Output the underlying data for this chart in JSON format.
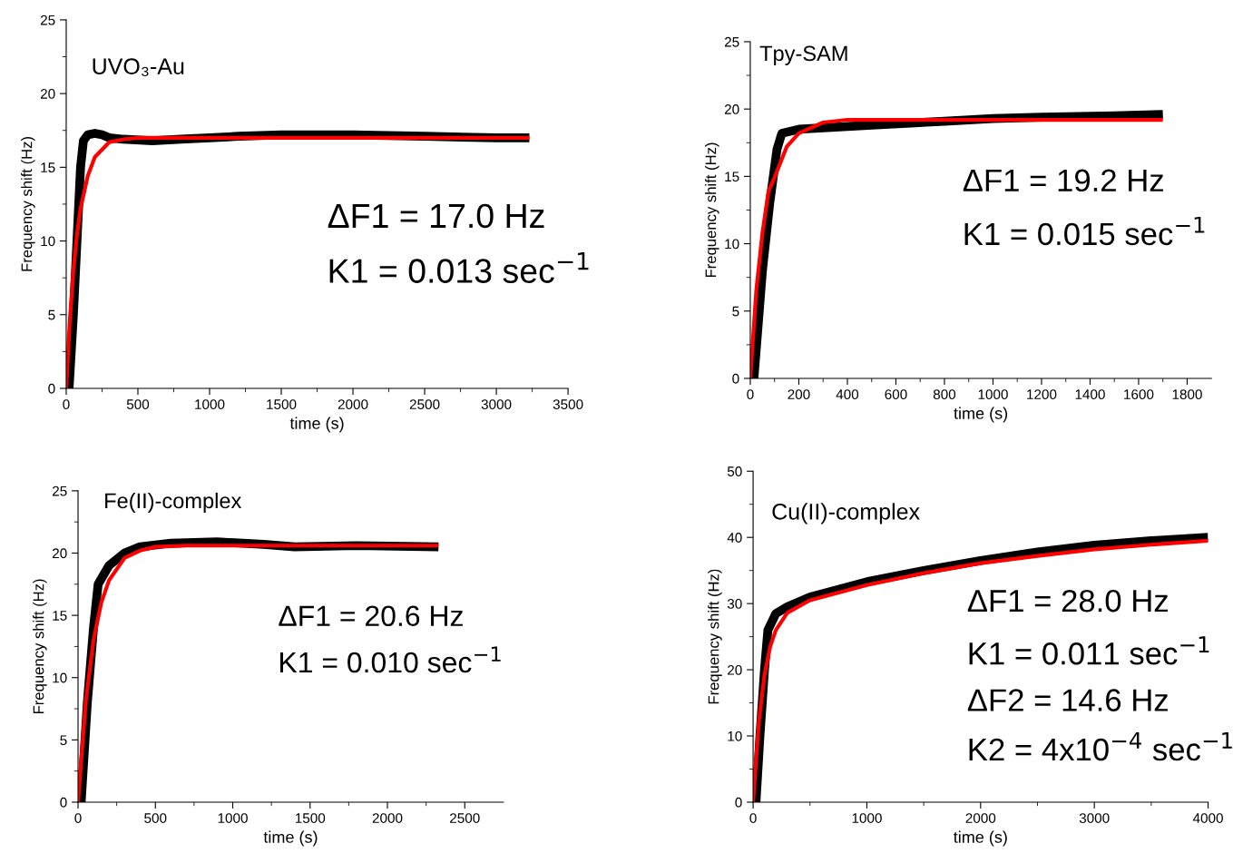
{
  "chart_data": [
    {
      "type": "line",
      "title": "UVO₃-Au",
      "xlabel": "time (s)",
      "ylabel": "Frequency shift (Hz)",
      "xlim": [
        0,
        3500
      ],
      "ylim": [
        0,
        25
      ],
      "xticks": [
        0,
        {
          "value": 250,
          "label": null
        },
        500,
        {
          "value": 750,
          "label": null
        },
        1000,
        {
          "value": 1250,
          "label": null
        },
        1500,
        {
          "value": 1750,
          "label": null
        },
        2000,
        {
          "value": 2250,
          "label": null
        },
        2500,
        {
          "value": 2750,
          "label": null
        },
        3000,
        {
          "value": 3250,
          "label": null
        },
        3500
      ],
      "yticks": [
        0,
        {
          "value": 2.5,
          "label": null
        },
        5,
        {
          "value": 7.5,
          "label": null
        },
        10,
        {
          "value": 12.5,
          "label": null
        },
        15,
        {
          "value": 17.5,
          "label": null
        },
        20,
        {
          "value": 22.5,
          "label": null
        },
        25
      ],
      "grid": false,
      "legend": false,
      "marker": "none",
      "line_style": "solid",
      "annotations": [
        "ΔF1 = 17.0 Hz",
        "K1 = 0.013 sec$^{−1}$"
      ],
      "series": [
        {
          "color": "#000000",
          "x": [
            0,
            20,
            50,
            80,
            100,
            120,
            150,
            200,
            250,
            300,
            400,
            600,
            800,
            1000,
            1200,
            1500,
            1800,
            2000,
            2500,
            3000,
            3230
          ],
          "values": [
            0,
            0,
            5,
            11,
            15,
            16.8,
            17.2,
            17.3,
            17.2,
            17.0,
            16.9,
            16.8,
            16.9,
            17.0,
            17.1,
            17.2,
            17.2,
            17.2,
            17.1,
            17.0,
            17.0
          ]
        },
        {
          "color": "#ff0000",
          "x": [
            0,
            25,
            50,
            75,
            100,
            150,
            200,
            300,
            400,
            500,
            1000,
            3230
          ],
          "values": [
            0,
            4.6,
            8.0,
            10.4,
            12.2,
            14.4,
            15.7,
            16.7,
            16.9,
            17.0,
            17.0,
            17.0
          ]
        }
      ]
    },
    {
      "type": "line",
      "title": "Tpy-SAM",
      "xlabel": "time (s)",
      "ylabel": "Frequency shift (Hz)",
      "xlim": [
        0,
        1900
      ],
      "ylim": [
        0,
        25
      ],
      "xticks": [
        0,
        {
          "value": 100,
          "label": null
        },
        200,
        {
          "value": 300,
          "label": null
        },
        400,
        {
          "value": 500,
          "label": null
        },
        600,
        {
          "value": 700,
          "label": null
        },
        800,
        {
          "value": 900,
          "label": null
        },
        1000,
        {
          "value": 1100,
          "label": null
        },
        1200,
        {
          "value": 1300,
          "label": null
        },
        1400,
        {
          "value": 1500,
          "label": null
        },
        1600,
        {
          "value": 1700,
          "label": null
        },
        1800
      ],
      "yticks": [
        0,
        {
          "value": 2.5,
          "label": null
        },
        5,
        {
          "value": 7.5,
          "label": null
        },
        10,
        {
          "value": 12.5,
          "label": null
        },
        15,
        {
          "value": 17.5,
          "label": null
        },
        20,
        {
          "value": 22.5,
          "label": null
        },
        25
      ],
      "grid": false,
      "legend": false,
      "marker": "none",
      "line_style": "solid",
      "annotations": [
        "ΔF1 = 19.2 Hz",
        "K1 = 0.015 sec$^{−1}$"
      ],
      "series": [
        {
          "color": "#000000",
          "x": [
            0,
            15,
            50,
            80,
            110,
            130,
            200,
            300,
            500,
            800,
            1000,
            1200,
            1500,
            1700
          ],
          "values": [
            0,
            0,
            8,
            13,
            17,
            18.2,
            18.5,
            18.6,
            18.8,
            19.1,
            19.3,
            19.4,
            19.5,
            19.6
          ]
        },
        {
          "color": "#ff0000",
          "x": [
            0,
            25,
            50,
            75,
            100,
            150,
            200,
            300,
            400,
            1700
          ],
          "values": [
            0,
            6.6,
            10.8,
            13.9,
            14.9,
            17.2,
            18.2,
            19.0,
            19.2,
            19.2
          ]
        }
      ]
    },
    {
      "type": "line",
      "title": "Fe(II)-complex",
      "xlabel": "time (s)",
      "ylabel": "Frequency shift (Hz)",
      "xlim": [
        0,
        2750
      ],
      "ylim": [
        0,
        25
      ],
      "xticks": [
        0,
        {
          "value": 250,
          "label": null
        },
        500,
        {
          "value": 750,
          "label": null
        },
        1000,
        {
          "value": 1250,
          "label": null
        },
        1500,
        {
          "value": 1750,
          "label": null
        },
        2000,
        {
          "value": 2250,
          "label": null
        },
        2500
      ],
      "yticks": [
        0,
        {
          "value": 2.5,
          "label": null
        },
        5,
        {
          "value": 7.5,
          "label": null
        },
        10,
        {
          "value": 12.5,
          "label": null
        },
        15,
        {
          "value": 17.5,
          "label": null
        },
        20,
        {
          "value": 22.5,
          "label": null
        },
        25
      ],
      "grid": false,
      "legend": false,
      "marker": "none",
      "line_style": "solid",
      "annotations": [
        "ΔF1 = 20.6 Hz",
        "K1 = 0.010 sec$^{−1}$"
      ],
      "series": [
        {
          "color": "#000000",
          "x": [
            0,
            20,
            60,
            100,
            130,
            200,
            300,
            400,
            600,
            900,
            1200,
            1400,
            1800,
            2330
          ],
          "values": [
            0,
            0,
            8,
            14,
            17.5,
            19,
            20,
            20.5,
            20.8,
            20.9,
            20.7,
            20.5,
            20.6,
            20.5
          ]
        },
        {
          "color": "#ff0000",
          "x": [
            0,
            50,
            100,
            150,
            200,
            300,
            400,
            500,
            700,
            2330
          ],
          "values": [
            0,
            8.1,
            13.0,
            16.0,
            17.8,
            19.6,
            20.2,
            20.5,
            20.6,
            20.6
          ]
        }
      ]
    },
    {
      "type": "line",
      "title": "Cu(II)-complex",
      "xlabel": "time (s)",
      "ylabel": "Frequency shift (Hz)",
      "xlim": [
        0,
        4000
      ],
      "ylim": [
        0,
        50
      ],
      "xticks": [
        0,
        {
          "value": 500,
          "label": null
        },
        1000,
        {
          "value": 1500,
          "label": null
        },
        2000,
        {
          "value": 2500,
          "label": null
        },
        3000,
        {
          "value": 3500,
          "label": null
        },
        4000
      ],
      "yticks": [
        0,
        {
          "value": 5,
          "label": null
        },
        10,
        {
          "value": 15,
          "label": null
        },
        20,
        {
          "value": 25,
          "label": null
        },
        30,
        {
          "value": 35,
          "label": null
        },
        40,
        {
          "value": 45,
          "label": null
        },
        50
      ],
      "grid": false,
      "legend": false,
      "marker": "none",
      "line_style": "solid",
      "annotations": [
        "ΔF1 = 28.0 Hz",
        "K1 = 0.011 sec$^{−1}$",
        "ΔF2 = 14.6 Hz",
        "K2 = 4x10$^{−4}$ sec$^{−1}$"
      ],
      "series": [
        {
          "color": "#000000",
          "x": [
            0,
            25,
            60,
            100,
            130,
            200,
            300,
            500,
            1000,
            1500,
            2000,
            2500,
            3000,
            3500,
            4000
          ],
          "values": [
            0,
            0,
            10,
            20,
            26,
            28.5,
            29.5,
            31,
            33.3,
            35,
            36.5,
            37.8,
            38.8,
            39.5,
            40
          ]
        },
        {
          "color": "#ff0000",
          "x": [
            0,
            50,
            100,
            150,
            200,
            300,
            500,
            1000,
            1500,
            2000,
            2500,
            3000,
            3500,
            4000
          ],
          "values": [
            0,
            12.1,
            19.2,
            23.5,
            26.0,
            28.6,
            30.5,
            32.8,
            34.6,
            36.1,
            37.2,
            38.2,
            38.9,
            39.5
          ]
        }
      ]
    }
  ]
}
